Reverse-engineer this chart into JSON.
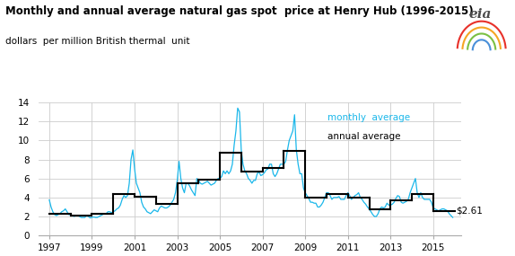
{
  "title": "Monthly and annual average natural gas spot  price at Henry Hub (1996-2015)",
  "subtitle": "dollars  per million British thermal  unit",
  "ylim": [
    0,
    14
  ],
  "xlim": [
    1996.5,
    2016.3
  ],
  "xticks": [
    1997,
    1999,
    2001,
    2003,
    2005,
    2007,
    2009,
    2011,
    2013,
    2015
  ],
  "yticks": [
    0,
    2,
    4,
    6,
    8,
    10,
    12,
    14
  ],
  "monthly_color": "#1ab7ea",
  "annual_color": "#000000",
  "background_color": "#ffffff",
  "grid_color": "#cccccc",
  "annotation": "$2.61",
  "annual_data": {
    "1997": 2.32,
    "1998": 2.08,
    "1999": 2.27,
    "2000": 4.32,
    "2001": 4.07,
    "2002": 3.33,
    "2003": 5.47,
    "2004": 5.85,
    "2005": 8.7,
    "2006": 6.73,
    "2007": 7.12,
    "2008": 8.86,
    "2009": 3.99,
    "2010": 4.37,
    "2011": 4.0,
    "2012": 2.75,
    "2013": 3.73,
    "2014": 4.37,
    "2015": 2.61
  },
  "monthly_data": [
    [
      1997.0,
      3.75
    ],
    [
      1997.083,
      3.0
    ],
    [
      1997.167,
      2.5
    ],
    [
      1997.25,
      2.2
    ],
    [
      1997.333,
      2.1
    ],
    [
      1997.417,
      2.2
    ],
    [
      1997.5,
      2.3
    ],
    [
      1997.583,
      2.5
    ],
    [
      1997.667,
      2.6
    ],
    [
      1997.75,
      2.8
    ],
    [
      1997.833,
      2.5
    ],
    [
      1997.917,
      2.2
    ],
    [
      1998.0,
      2.2
    ],
    [
      1998.083,
      2.1
    ],
    [
      1998.167,
      2.0
    ],
    [
      1998.25,
      2.1
    ],
    [
      1998.333,
      2.1
    ],
    [
      1998.417,
      2.0
    ],
    [
      1998.5,
      1.9
    ],
    [
      1998.583,
      1.9
    ],
    [
      1998.667,
      1.9
    ],
    [
      1998.75,
      2.1
    ],
    [
      1998.833,
      2.0
    ],
    [
      1998.917,
      1.85
    ],
    [
      1999.0,
      1.9
    ],
    [
      1999.083,
      1.95
    ],
    [
      1999.167,
      1.9
    ],
    [
      1999.25,
      1.9
    ],
    [
      1999.333,
      2.0
    ],
    [
      1999.417,
      2.1
    ],
    [
      1999.5,
      2.2
    ],
    [
      1999.583,
      2.3
    ],
    [
      1999.667,
      2.3
    ],
    [
      1999.75,
      2.5
    ],
    [
      1999.833,
      2.5
    ],
    [
      1999.917,
      2.4
    ],
    [
      2000.0,
      2.5
    ],
    [
      2000.083,
      2.6
    ],
    [
      2000.167,
      2.8
    ],
    [
      2000.25,
      2.9
    ],
    [
      2000.333,
      3.2
    ],
    [
      2000.417,
      3.8
    ],
    [
      2000.5,
      4.2
    ],
    [
      2000.583,
      4.0
    ],
    [
      2000.667,
      4.2
    ],
    [
      2000.75,
      5.5
    ],
    [
      2000.833,
      8.0
    ],
    [
      2000.917,
      9.0
    ],
    [
      2001.0,
      7.0
    ],
    [
      2001.083,
      5.5
    ],
    [
      2001.167,
      5.0
    ],
    [
      2001.25,
      4.5
    ],
    [
      2001.333,
      3.5
    ],
    [
      2001.417,
      3.0
    ],
    [
      2001.5,
      2.8
    ],
    [
      2001.583,
      2.5
    ],
    [
      2001.667,
      2.4
    ],
    [
      2001.75,
      2.3
    ],
    [
      2001.833,
      2.5
    ],
    [
      2001.917,
      2.7
    ],
    [
      2002.0,
      2.6
    ],
    [
      2002.083,
      2.5
    ],
    [
      2002.167,
      2.9
    ],
    [
      2002.25,
      3.1
    ],
    [
      2002.333,
      3.0
    ],
    [
      2002.417,
      2.9
    ],
    [
      2002.5,
      2.9
    ],
    [
      2002.583,
      3.0
    ],
    [
      2002.667,
      3.2
    ],
    [
      2002.75,
      3.5
    ],
    [
      2002.833,
      3.8
    ],
    [
      2002.917,
      4.5
    ],
    [
      2003.0,
      5.8
    ],
    [
      2003.083,
      7.8
    ],
    [
      2003.167,
      6.0
    ],
    [
      2003.25,
      5.0
    ],
    [
      2003.333,
      4.5
    ],
    [
      2003.417,
      5.5
    ],
    [
      2003.5,
      5.5
    ],
    [
      2003.583,
      5.2
    ],
    [
      2003.667,
      4.8
    ],
    [
      2003.75,
      4.5
    ],
    [
      2003.833,
      4.2
    ],
    [
      2003.917,
      6.0
    ],
    [
      2004.0,
      5.8
    ],
    [
      2004.083,
      5.5
    ],
    [
      2004.167,
      5.4
    ],
    [
      2004.25,
      5.5
    ],
    [
      2004.333,
      5.6
    ],
    [
      2004.417,
      5.7
    ],
    [
      2004.5,
      5.5
    ],
    [
      2004.583,
      5.3
    ],
    [
      2004.667,
      5.4
    ],
    [
      2004.75,
      5.5
    ],
    [
      2004.833,
      5.8
    ],
    [
      2004.917,
      6.0
    ],
    [
      2005.0,
      6.0
    ],
    [
      2005.083,
      6.2
    ],
    [
      2005.167,
      6.8
    ],
    [
      2005.25,
      6.5
    ],
    [
      2005.333,
      6.8
    ],
    [
      2005.417,
      6.5
    ],
    [
      2005.5,
      6.8
    ],
    [
      2005.583,
      7.5
    ],
    [
      2005.667,
      9.5
    ],
    [
      2005.75,
      11.0
    ],
    [
      2005.833,
      13.4
    ],
    [
      2005.917,
      13.0
    ],
    [
      2006.0,
      9.0
    ],
    [
      2006.083,
      7.5
    ],
    [
      2006.167,
      6.8
    ],
    [
      2006.25,
      6.5
    ],
    [
      2006.333,
      6.0
    ],
    [
      2006.417,
      5.8
    ],
    [
      2006.5,
      5.5
    ],
    [
      2006.583,
      5.8
    ],
    [
      2006.667,
      5.8
    ],
    [
      2006.75,
      6.5
    ],
    [
      2006.833,
      6.7
    ],
    [
      2006.917,
      6.3
    ],
    [
      2007.0,
      6.4
    ],
    [
      2007.083,
      6.6
    ],
    [
      2007.167,
      6.9
    ],
    [
      2007.25,
      7.0
    ],
    [
      2007.333,
      7.5
    ],
    [
      2007.417,
      7.5
    ],
    [
      2007.5,
      6.5
    ],
    [
      2007.583,
      6.2
    ],
    [
      2007.667,
      6.5
    ],
    [
      2007.75,
      7.0
    ],
    [
      2007.833,
      7.5
    ],
    [
      2007.917,
      7.5
    ],
    [
      2008.0,
      7.5
    ],
    [
      2008.083,
      7.8
    ],
    [
      2008.167,
      9.0
    ],
    [
      2008.25,
      10.0
    ],
    [
      2008.333,
      10.5
    ],
    [
      2008.417,
      11.0
    ],
    [
      2008.5,
      12.7
    ],
    [
      2008.583,
      9.0
    ],
    [
      2008.667,
      7.5
    ],
    [
      2008.75,
      6.5
    ],
    [
      2008.833,
      6.5
    ],
    [
      2008.917,
      5.0
    ],
    [
      2009.0,
      4.5
    ],
    [
      2009.083,
      4.2
    ],
    [
      2009.167,
      3.9
    ],
    [
      2009.25,
      3.5
    ],
    [
      2009.333,
      3.5
    ],
    [
      2009.417,
      3.4
    ],
    [
      2009.5,
      3.4
    ],
    [
      2009.583,
      3.0
    ],
    [
      2009.667,
      3.0
    ],
    [
      2009.75,
      3.2
    ],
    [
      2009.833,
      3.5
    ],
    [
      2009.917,
      4.0
    ],
    [
      2010.0,
      4.5
    ],
    [
      2010.083,
      4.5
    ],
    [
      2010.167,
      4.2
    ],
    [
      2010.25,
      3.8
    ],
    [
      2010.333,
      4.0
    ],
    [
      2010.417,
      4.0
    ],
    [
      2010.5,
      4.0
    ],
    [
      2010.583,
      4.1
    ],
    [
      2010.667,
      3.8
    ],
    [
      2010.75,
      3.8
    ],
    [
      2010.833,
      3.8
    ],
    [
      2010.917,
      4.2
    ],
    [
      2011.0,
      4.5
    ],
    [
      2011.083,
      4.2
    ],
    [
      2011.167,
      3.8
    ],
    [
      2011.25,
      4.0
    ],
    [
      2011.333,
      4.2
    ],
    [
      2011.417,
      4.3
    ],
    [
      2011.5,
      4.5
    ],
    [
      2011.583,
      4.0
    ],
    [
      2011.667,
      3.8
    ],
    [
      2011.75,
      3.5
    ],
    [
      2011.833,
      3.3
    ],
    [
      2011.917,
      3.0
    ],
    [
      2012.0,
      2.8
    ],
    [
      2012.083,
      2.5
    ],
    [
      2012.167,
      2.2
    ],
    [
      2012.25,
      2.0
    ],
    [
      2012.333,
      2.0
    ],
    [
      2012.417,
      2.3
    ],
    [
      2012.5,
      2.8
    ],
    [
      2012.583,
      3.0
    ],
    [
      2012.667,
      2.9
    ],
    [
      2012.75,
      3.0
    ],
    [
      2012.833,
      3.4
    ],
    [
      2012.917,
      3.2
    ],
    [
      2013.0,
      3.2
    ],
    [
      2013.083,
      3.3
    ],
    [
      2013.167,
      3.5
    ],
    [
      2013.25,
      3.9
    ],
    [
      2013.333,
      4.2
    ],
    [
      2013.417,
      4.1
    ],
    [
      2013.5,
      3.5
    ],
    [
      2013.583,
      3.4
    ],
    [
      2013.667,
      3.5
    ],
    [
      2013.75,
      3.6
    ],
    [
      2013.833,
      3.8
    ],
    [
      2013.917,
      4.5
    ],
    [
      2014.0,
      5.0
    ],
    [
      2014.083,
      5.5
    ],
    [
      2014.167,
      6.0
    ],
    [
      2014.25,
      4.5
    ],
    [
      2014.333,
      4.0
    ],
    [
      2014.417,
      4.5
    ],
    [
      2014.5,
      4.0
    ],
    [
      2014.583,
      3.8
    ],
    [
      2014.667,
      3.8
    ],
    [
      2014.75,
      3.8
    ],
    [
      2014.833,
      3.8
    ],
    [
      2014.917,
      3.5
    ],
    [
      2015.0,
      2.9
    ],
    [
      2015.083,
      2.8
    ],
    [
      2015.167,
      2.7
    ],
    [
      2015.25,
      2.6
    ],
    [
      2015.333,
      2.7
    ],
    [
      2015.417,
      2.8
    ],
    [
      2015.5,
      2.8
    ],
    [
      2015.583,
      2.7
    ],
    [
      2015.667,
      2.6
    ],
    [
      2015.75,
      2.3
    ],
    [
      2015.833,
      2.1
    ],
    [
      2015.917,
      1.9
    ]
  ]
}
